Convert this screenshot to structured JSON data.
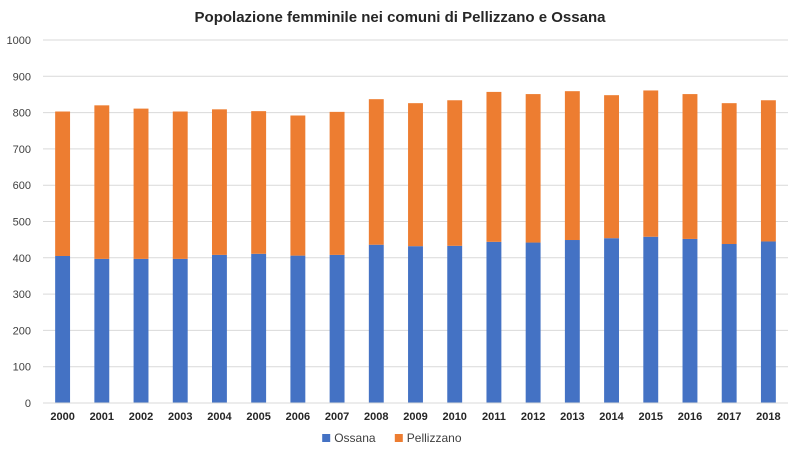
{
  "chart_data": {
    "type": "bar",
    "stacked": true,
    "title": "Popolazione femminile nei comuni di Pellizzano e Ossana",
    "xlabel": "",
    "ylabel": "",
    "categories": [
      "2000",
      "2001",
      "2002",
      "2003",
      "2004",
      "2005",
      "2006",
      "2007",
      "2008",
      "2009",
      "2010",
      "2011",
      "2012",
      "2013",
      "2014",
      "2015",
      "2016",
      "2017",
      "2018"
    ],
    "series": [
      {
        "name": "Ossana",
        "color": "#4472c4",
        "values": [
          405,
          397,
          397,
          397,
          408,
          411,
          406,
          408,
          436,
          432,
          433,
          444,
          442,
          449,
          454,
          458,
          452,
          438,
          445
        ]
      },
      {
        "name": "Pellizzano",
        "color": "#ed7d31",
        "values": [
          398,
          423,
          414,
          406,
          401,
          393,
          386,
          394,
          401,
          394,
          401,
          413,
          409,
          410,
          394,
          403,
          399,
          388,
          389
        ]
      }
    ],
    "ylim": [
      0,
      1000
    ],
    "yticks": [
      0,
      100,
      200,
      300,
      400,
      500,
      600,
      700,
      800,
      900,
      1000
    ],
    "grid": true,
    "legend": "bottom"
  }
}
